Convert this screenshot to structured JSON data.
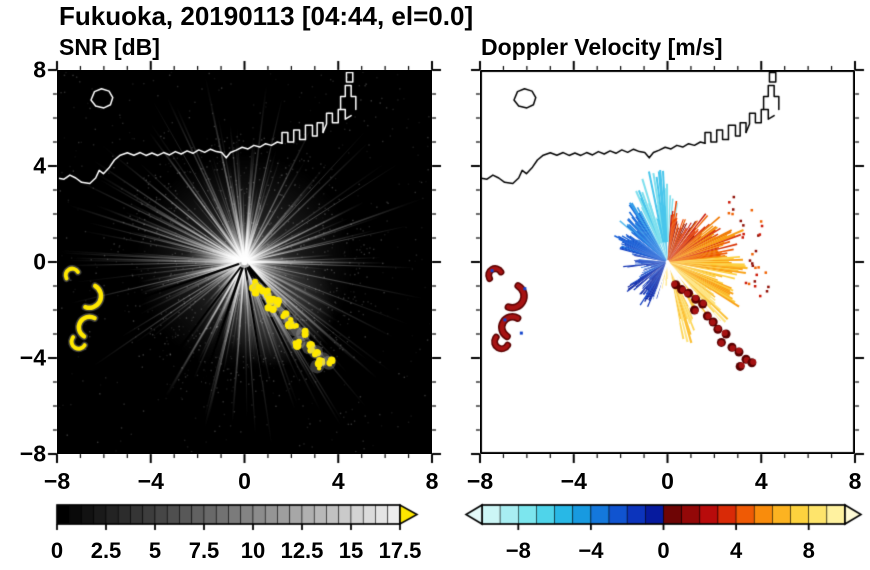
{
  "title": "Fukuoka, 20190113 [04:44, el=0.0]",
  "chart_data": {
    "type": "heatmap",
    "title": "Fukuoka, 20190113 [04:44, el=0.0]",
    "panels": [
      {
        "id": "snr",
        "title": "SNR [dB]",
        "xlim": [
          -8,
          8
        ],
        "ylim": [
          -8,
          8
        ],
        "xticks": [
          -8,
          -4,
          0,
          4,
          8
        ],
        "yticks": [
          8,
          4,
          0,
          -4,
          -8
        ],
        "xtick_labels": [
          "−8",
          "−4",
          "0",
          "4",
          "8"
        ],
        "ytick_labels": [
          "8",
          "4",
          "0",
          "−4",
          "−8"
        ],
        "background": "#000000",
        "coast_color": "#ffffff",
        "colorbar": {
          "min": 0,
          "max": 17.5,
          "tick_values": [
            0,
            2.5,
            5,
            7.5,
            10,
            12.5,
            15,
            17.5
          ],
          "tick_labels": [
            "0",
            "2.5",
            "5",
            "7.5",
            "10",
            "12.5",
            "15",
            "17.5"
          ],
          "cells": 28,
          "low_color": "#000000",
          "high_color": "#ededed",
          "over_color": "#ffe800",
          "arrow_left": false,
          "arrow_right": true
        }
      },
      {
        "id": "doppler",
        "title": "Doppler Velocity [m/s]",
        "xlim": [
          -8,
          8
        ],
        "ylim": [
          -8,
          8
        ],
        "xticks": [
          -8,
          -4,
          0,
          4,
          8
        ],
        "yticks": [
          8,
          4,
          0,
          -4,
          -8
        ],
        "xtick_labels": [
          "−8",
          "−4",
          "0",
          "4",
          "8"
        ],
        "ytick_labels": [],
        "background": "#ffffff",
        "coast_color": "#000000",
        "colorbar": {
          "min": -10,
          "max": 10,
          "tick_values": [
            -8,
            -4,
            0,
            4,
            8
          ],
          "tick_labels": [
            "−8",
            "−4",
            "0",
            "4",
            "8"
          ],
          "palette": [
            "#ccf6f6",
            "#a8eef2",
            "#7ce6ee",
            "#4fd4ea",
            "#28b8e6",
            "#189ae0",
            "#1478dc",
            "#1054d0",
            "#0c34bc",
            "#061a9e",
            "#6e0505",
            "#930808",
            "#b80b0b",
            "#d92a07",
            "#ef5a05",
            "#f98c0c",
            "#fcb321",
            "#fdd23e",
            "#fee46b",
            "#fff2a0"
          ],
          "under_color": "#e4fafa",
          "over_color": "#fffbd6",
          "arrow_left": true,
          "arrow_right": true
        }
      }
    ],
    "coastline": {
      "mainland": [
        [
          -8.0,
          3.5
        ],
        [
          -7.7,
          3.45
        ],
        [
          -7.45,
          3.62
        ],
        [
          -7.2,
          3.5
        ],
        [
          -6.95,
          3.32
        ],
        [
          -6.6,
          3.27
        ],
        [
          -6.35,
          3.5
        ],
        [
          -6.2,
          3.82
        ],
        [
          -6.02,
          3.68
        ],
        [
          -5.76,
          3.95
        ],
        [
          -5.55,
          4.25
        ],
        [
          -5.3,
          4.45
        ],
        [
          -5.0,
          4.55
        ],
        [
          -4.72,
          4.45
        ],
        [
          -4.45,
          4.56
        ],
        [
          -4.2,
          4.44
        ],
        [
          -3.95,
          4.54
        ],
        [
          -3.7,
          4.44
        ],
        [
          -3.45,
          4.56
        ],
        [
          -3.2,
          4.46
        ],
        [
          -2.95,
          4.6
        ],
        [
          -2.7,
          4.5
        ],
        [
          -2.45,
          4.63
        ],
        [
          -2.2,
          4.53
        ],
        [
          -1.95,
          4.67
        ],
        [
          -1.7,
          4.57
        ],
        [
          -1.45,
          4.7
        ],
        [
          -1.2,
          4.6
        ],
        [
          -0.97,
          4.56
        ],
        [
          -0.78,
          4.34
        ],
        [
          -0.6,
          4.56
        ],
        [
          -0.35,
          4.66
        ],
        [
          -0.1,
          4.78
        ],
        [
          0.15,
          4.71
        ],
        [
          0.4,
          4.86
        ],
        [
          0.65,
          4.79
        ],
        [
          0.9,
          4.93
        ],
        [
          1.15,
          4.86
        ],
        [
          1.4,
          5.0
        ],
        [
          1.6,
          4.95
        ]
      ],
      "harbor": [
        [
          [
            1.6,
            4.95
          ],
          [
            1.6,
            5.4
          ],
          [
            1.85,
            5.4
          ],
          [
            1.85,
            5.0
          ],
          [
            2.1,
            5.0
          ],
          [
            2.1,
            5.5
          ],
          [
            2.35,
            5.5
          ],
          [
            2.35,
            5.1
          ],
          [
            2.6,
            5.1
          ]
        ],
        [
          [
            2.6,
            5.1
          ],
          [
            2.6,
            5.7
          ],
          [
            2.9,
            5.7
          ],
          [
            2.9,
            5.25
          ],
          [
            3.1,
            5.25
          ],
          [
            3.1,
            5.8
          ],
          [
            3.35,
            5.8
          ],
          [
            3.35,
            5.4
          ]
        ],
        [
          [
            3.35,
            5.4
          ],
          [
            3.5,
            5.75
          ],
          [
            3.5,
            6.2
          ],
          [
            3.75,
            6.2
          ],
          [
            3.75,
            5.8
          ],
          [
            4.0,
            5.8
          ],
          [
            4.0,
            6.35
          ],
          [
            4.3,
            6.35
          ],
          [
            4.3,
            5.95
          ],
          [
            4.55,
            6.1
          ]
        ],
        [
          [
            4.1,
            6.35
          ],
          [
            4.1,
            6.9
          ],
          [
            4.3,
            6.9
          ],
          [
            4.3,
            7.35
          ],
          [
            4.55,
            7.35
          ],
          [
            4.55,
            6.9
          ],
          [
            4.75,
            6.9
          ],
          [
            4.75,
            6.35
          ]
        ]
      ],
      "island": [
        [
          -6.55,
          6.75
        ],
        [
          -6.35,
          6.5
        ],
        [
          -6.0,
          6.42
        ],
        [
          -5.72,
          6.55
        ],
        [
          -5.62,
          6.85
        ],
        [
          -5.78,
          7.12
        ],
        [
          -6.1,
          7.22
        ],
        [
          -6.4,
          7.1
        ]
      ],
      "islet_top": [
        [
          4.35,
          7.5
        ],
        [
          4.35,
          7.9
        ],
        [
          4.62,
          7.9
        ],
        [
          4.62,
          7.5
        ]
      ]
    },
    "radar": {
      "center": [
        0,
        0
      ],
      "echo_arcs": [
        {
          "cx": -7.35,
          "cy": -0.55,
          "r": 0.28,
          "a0": 150,
          "a1": 330,
          "w": 4
        },
        {
          "cx": -6.62,
          "cy": -1.42,
          "r": 0.5,
          "a0": 300,
          "a1": 470,
          "w": 4.5
        },
        {
          "cx": -6.62,
          "cy": -2.72,
          "r": 0.45,
          "a0": 120,
          "a1": 300,
          "w": 4.5
        },
        {
          "cx": -7.08,
          "cy": -3.32,
          "r": 0.3,
          "a0": 30,
          "a1": 220,
          "w": 4
        }
      ],
      "echo_chain": [
        [
          0.35,
          -0.95
        ],
        [
          0.6,
          -1.15
        ],
        [
          0.9,
          -1.3
        ],
        [
          1.2,
          -1.55
        ],
        [
          1.5,
          -1.75
        ],
        [
          1.15,
          -2.0
        ],
        [
          1.7,
          -2.25
        ],
        [
          1.95,
          -2.5
        ],
        [
          2.15,
          -2.8
        ],
        [
          2.5,
          -3.0
        ],
        [
          2.3,
          -3.35
        ],
        [
          2.75,
          -3.55
        ],
        [
          3.05,
          -3.75
        ],
        [
          3.35,
          -4.05
        ],
        [
          3.1,
          -4.35
        ],
        [
          3.6,
          -4.2
        ]
      ],
      "snr": {
        "echo_color": "#ffe800",
        "ray_count": 340,
        "shadow_lines": [
          {
            "az": 139,
            "len": 165,
            "w": 3
          },
          {
            "az": 147,
            "len": 170,
            "w": 2.5
          },
          {
            "az": 154,
            "len": 150,
            "w": 2
          },
          {
            "az": 171,
            "len": 120,
            "w": 2
          },
          {
            "az": 199,
            "len": 140,
            "w": 2.5
          },
          {
            "az": 217,
            "len": 130,
            "w": 2
          },
          {
            "az": 251,
            "len": 145,
            "w": 2.2
          }
        ]
      },
      "doppler": {
        "sectors": [
          {
            "a0": 334,
            "a1": 372,
            "rmin": 42,
            "rmax": 80,
            "density": 0.62,
            "colors": [
              "#7fe0ee",
              "#49c6ec",
              "#a6eef4",
              "#2eb2e6"
            ]
          },
          {
            "a0": 310,
            "a1": 334,
            "rmin": 42,
            "rmax": 74,
            "density": 0.9,
            "colors": [
              "#2f9ae8",
              "#1f7ee4",
              "#55bbee",
              "#1668da"
            ]
          },
          {
            "a0": 286,
            "a1": 310,
            "rmin": 34,
            "rmax": 60,
            "density": 0.95,
            "colors": [
              "#1660d8",
              "#1a74e0",
              "#0f4ecc"
            ]
          },
          {
            "a0": 262,
            "a1": 286,
            "rmin": 24,
            "rmax": 50,
            "density": 0.85,
            "colors": [
              "#0d3cc2",
              "#0a2cb0",
              "#1254d0"
            ]
          },
          {
            "a0": 238,
            "a1": 262,
            "rmin": 14,
            "rmax": 36,
            "density": 0.55,
            "colors": [
              "#0a2cb0",
              "#1660d8"
            ]
          },
          {
            "a0": 196,
            "a1": 238,
            "rmin": 22,
            "rmax": 56,
            "density": 0.92,
            "colors": [
              "#081c9c",
              "#0a2cb0",
              "#0d3cc2"
            ]
          },
          {
            "a0": 4,
            "a1": 46,
            "rmin": 26,
            "rmax": 64,
            "density": 0.88,
            "colors": [
              "#cc1705",
              "#ee4400",
              "#8e0d04",
              "#f06000"
            ]
          },
          {
            "a0": 46,
            "a1": 84,
            "rmin": 40,
            "rmax": 84,
            "density": 0.9,
            "colors": [
              "#f07800",
              "#ee5500",
              "#f89c10",
              "#d93305"
            ]
          },
          {
            "a0": 84,
            "a1": 122,
            "rmin": 48,
            "rmax": 86,
            "density": 0.92,
            "colors": [
              "#fbb826",
              "#f9a014",
              "#fdd040"
            ]
          },
          {
            "a0": 122,
            "a1": 168,
            "rmin": 40,
            "rmax": 86,
            "density": 0.85,
            "colors": [
              "#fdd65a",
              "#fee47e",
              "#fbbf33"
            ]
          },
          {
            "a0": 168,
            "a1": 196,
            "rmin": 8,
            "rmax": 28,
            "density": 0.3,
            "colors": [
              "#fdd65a",
              "#fee47e"
            ]
          }
        ],
        "streaks": {
          "az0": 334,
          "az1": 366,
          "count": 12,
          "rmin": 72,
          "rmax": 95,
          "colors": [
            "#7fe0ee",
            "#49c6ec"
          ]
        },
        "specks": {
          "az0": 44,
          "az1": 110,
          "rmin": 78,
          "rmax": 104,
          "count": 30,
          "colors": [
            "#cc1705",
            "#8e0d04",
            "#f06000"
          ]
        },
        "gap_lines": [
          {
            "az": 139,
            "len": 108
          },
          {
            "az": 146,
            "len": 112
          },
          {
            "az": 153,
            "len": 100
          },
          {
            "az": 170,
            "len": 62
          },
          {
            "az": 199,
            "len": 70
          }
        ],
        "blob_core": "#a61212",
        "blob_edge": "#5a0000",
        "blue_specks": [
          [
            -7.55,
            -0.3
          ],
          [
            -6.15,
            -1.05
          ],
          [
            -7.0,
            -2.35
          ],
          [
            -6.3,
            -2.9
          ]
        ]
      }
    }
  }
}
